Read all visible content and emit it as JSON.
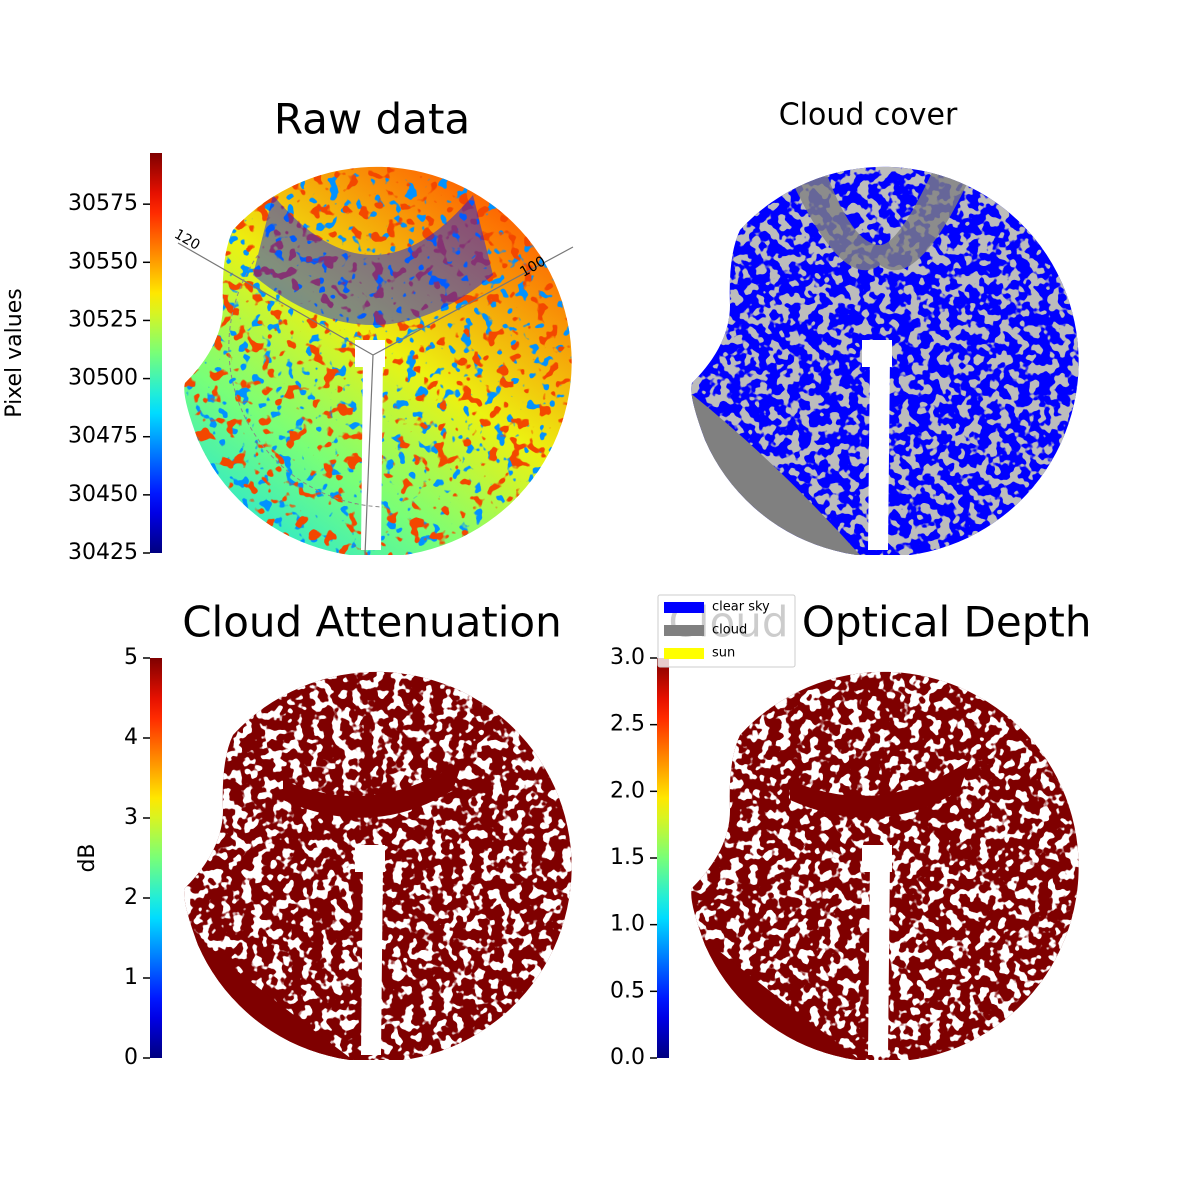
{
  "chart_data": [
    {
      "type": "image",
      "title": "Raw data",
      "colorbar_label": "Pixel values",
      "colormap": "jet",
      "ylim": [
        30425,
        30597
      ],
      "yticks": [
        30425,
        30450,
        30475,
        30500,
        30525,
        30550,
        30575
      ],
      "annotations": [
        "120",
        "100"
      ]
    },
    {
      "type": "classification",
      "title": "Cloud cover",
      "legend": [
        {
          "name": "clear sky",
          "color": "#0000ff"
        },
        {
          "name": "cloud",
          "color": "#808080"
        },
        {
          "name": "sun",
          "color": "#ffff00"
        }
      ]
    },
    {
      "type": "image",
      "title": "Cloud Attenuation",
      "colorbar_label": "dB",
      "colormap": "jet",
      "ylim": [
        0,
        5
      ],
      "yticks": [
        0,
        1,
        2,
        3,
        4,
        5
      ]
    },
    {
      "type": "image",
      "title": "Cloud Optical Depth",
      "colormap": "jet",
      "ylim": [
        0,
        3
      ],
      "yticks": [
        {
          "value": 0,
          "label": "0.0"
        },
        {
          "value": 0.5,
          "label": "0.5"
        },
        {
          "value": 1,
          "label": "1.0"
        },
        {
          "value": 1.5,
          "label": "1.5"
        },
        {
          "value": 2,
          "label": "2.0"
        },
        {
          "value": 2.5,
          "label": "2.5"
        },
        {
          "value": 3,
          "label": "3.0"
        }
      ]
    }
  ]
}
